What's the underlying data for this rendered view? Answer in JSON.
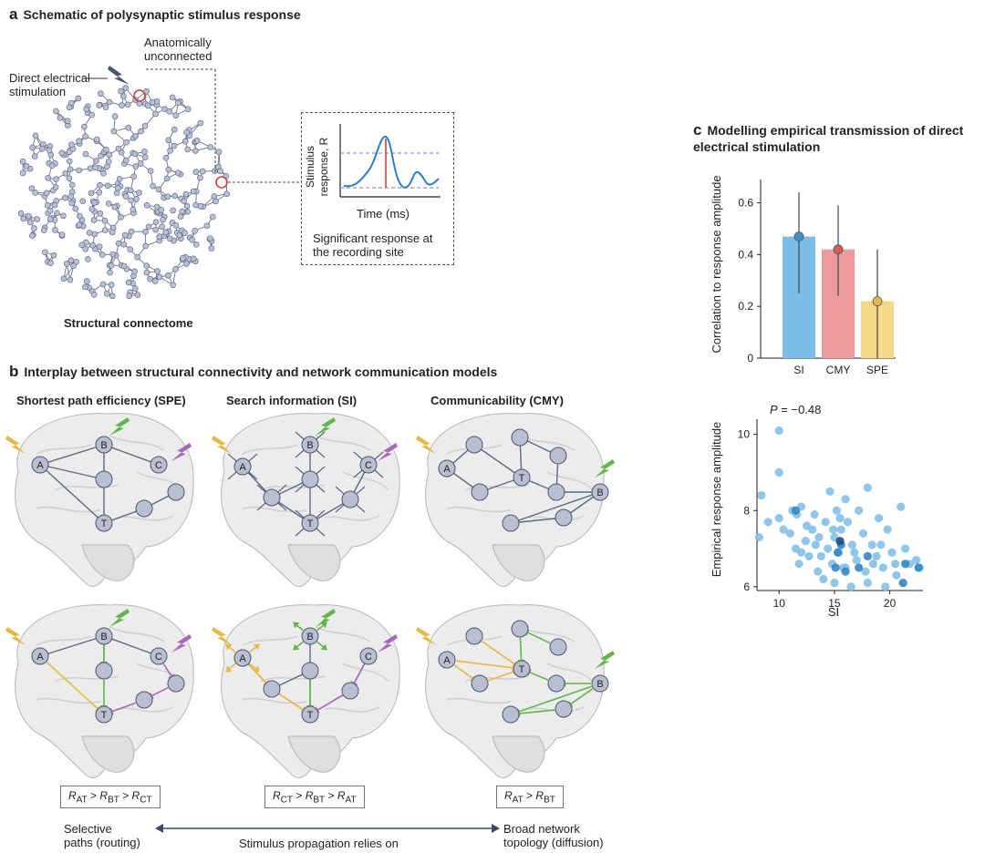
{
  "panel_a": {
    "letter": "a",
    "title": "Schematic of polysynaptic stimulus response",
    "direct_stim": "Direct electrical\nstimulation",
    "unconnected": "Anatomically\nunconnected",
    "connectome_label": "Structural connectome",
    "inset_ylabel": "Stimulus\nresponse, R",
    "inset_xlabel": "Time (ms)",
    "inset_caption": "Significant response at\nthe recording site"
  },
  "panel_b": {
    "letter": "b",
    "title": "Interplay between structural connectivity and network communication models",
    "columns": [
      {
        "heading": "Shortest path efficiency (SPE)",
        "equation": [
          "R",
          "AT",
          " > ",
          "R",
          "BT",
          " > ",
          "R",
          "CT"
        ]
      },
      {
        "heading": "Search information (SI)",
        "equation": [
          "R",
          "CT",
          " > ",
          "R",
          "BT",
          " > ",
          "R",
          "AT"
        ]
      },
      {
        "heading": "Communicability (CMY)",
        "equation": [
          "R",
          "AT",
          " > ",
          "R",
          "BT"
        ]
      }
    ],
    "left_caption": "Selective\npaths (routing)",
    "middle_caption": "Stimulus propagation relies on",
    "right_caption": "Broad network\ntopology (diffusion)"
  },
  "panel_c": {
    "letter": "c",
    "title": "Modelling empirical transmission of direct\nelectrical stimulation"
  },
  "chart_data": [
    {
      "type": "bar",
      "categories": [
        "SI",
        "CMY",
        "SPE"
      ],
      "values": [
        0.47,
        0.42,
        0.22
      ],
      "error_low": [
        0.25,
        0.24,
        0.0
      ],
      "error_high": [
        0.64,
        0.59,
        0.42
      ],
      "colors": [
        "#7cbde6",
        "#ec9a9a",
        "#f6d88a"
      ],
      "dot_colors": [
        "#3f8fcc",
        "#d85a5a",
        "#e9b84a"
      ],
      "ylabel": "Correlation to response amplitude",
      "yticks": [
        "0",
        "0.2",
        "0.4",
        "0.6"
      ],
      "ylim": [
        0,
        0.69
      ]
    },
    {
      "type": "scatter",
      "annotation_symbol": "P",
      "annotation_value": " = −0.48",
      "xlabel": "SI",
      "ylabel": "Empirical response amplitude",
      "xticks": [
        "10",
        "15",
        "20"
      ],
      "yticks": [
        "6",
        "8",
        "10"
      ],
      "xlim": [
        8,
        23
      ],
      "ylim": [
        5.9,
        10.4
      ],
      "points": [
        [
          10.0,
          10.1
        ],
        [
          10.0,
          9.0
        ],
        [
          8.4,
          8.4
        ],
        [
          9.0,
          7.7
        ],
        [
          8.2,
          7.3
        ],
        [
          10.0,
          7.8
        ],
        [
          10.4,
          7.5
        ],
        [
          11.0,
          7.4
        ],
        [
          11.2,
          8.0
        ],
        [
          11.6,
          7.9
        ],
        [
          12.0,
          8.1
        ],
        [
          12.4,
          7.2
        ],
        [
          12.0,
          6.9
        ],
        [
          11.8,
          6.6
        ],
        [
          12.7,
          6.8
        ],
        [
          13.0,
          7.5
        ],
        [
          13.2,
          7.9
        ],
        [
          13.6,
          7.3
        ],
        [
          13.8,
          6.8
        ],
        [
          14.2,
          7.7
        ],
        [
          14.6,
          8.5
        ],
        [
          14.4,
          7.0
        ],
        [
          14.8,
          6.6
        ],
        [
          15.0,
          7.3
        ],
        [
          15.2,
          8.0
        ],
        [
          15.4,
          6.9
        ],
        [
          15.6,
          7.5
        ],
        [
          15.8,
          6.5
        ],
        [
          16.0,
          8.3
        ],
        [
          16.2,
          7.7
        ],
        [
          16.6,
          7.1
        ],
        [
          17.0,
          6.7
        ],
        [
          17.2,
          8.0
        ],
        [
          17.6,
          7.4
        ],
        [
          18.0,
          8.6
        ],
        [
          18.4,
          7.1
        ],
        [
          18.8,
          6.8
        ],
        [
          19.0,
          7.8
        ],
        [
          19.4,
          6.5
        ],
        [
          19.8,
          7.5
        ],
        [
          20.2,
          6.9
        ],
        [
          20.6,
          6.3
        ],
        [
          21.0,
          8.1
        ],
        [
          21.4,
          7.0
        ],
        [
          21.8,
          6.6
        ],
        [
          22.4,
          6.7
        ],
        [
          22.7,
          6.5
        ],
        [
          13.5,
          6.4
        ],
        [
          14.0,
          6.2
        ],
        [
          15.0,
          6.1
        ],
        [
          16.5,
          6.0
        ],
        [
          18.0,
          6.1
        ],
        [
          19.6,
          6.0
        ],
        [
          20.5,
          6.6
        ],
        [
          12.5,
          7.6
        ],
        [
          11.5,
          7.0
        ],
        [
          15.5,
          7.8
        ],
        [
          17.8,
          6.4
        ],
        [
          16.8,
          6.9
        ],
        [
          14.9,
          7.5
        ],
        [
          13.3,
          7.1
        ],
        [
          19.2,
          7.1
        ],
        [
          16.0,
          6.5
        ],
        [
          18.5,
          6.6
        ]
      ],
      "dark_points": [
        [
          11.5,
          8.0
        ],
        [
          15.6,
          7.1
        ],
        [
          15.3,
          6.9
        ],
        [
          16.0,
          6.4
        ],
        [
          17.2,
          6.5
        ],
        [
          18.0,
          6.8
        ],
        [
          21.2,
          6.1
        ],
        [
          22.6,
          6.5
        ],
        [
          21.4,
          6.6
        ],
        [
          15.1,
          6.5
        ]
      ],
      "darkest_points": [
        [
          15.5,
          7.2
        ]
      ]
    }
  ]
}
